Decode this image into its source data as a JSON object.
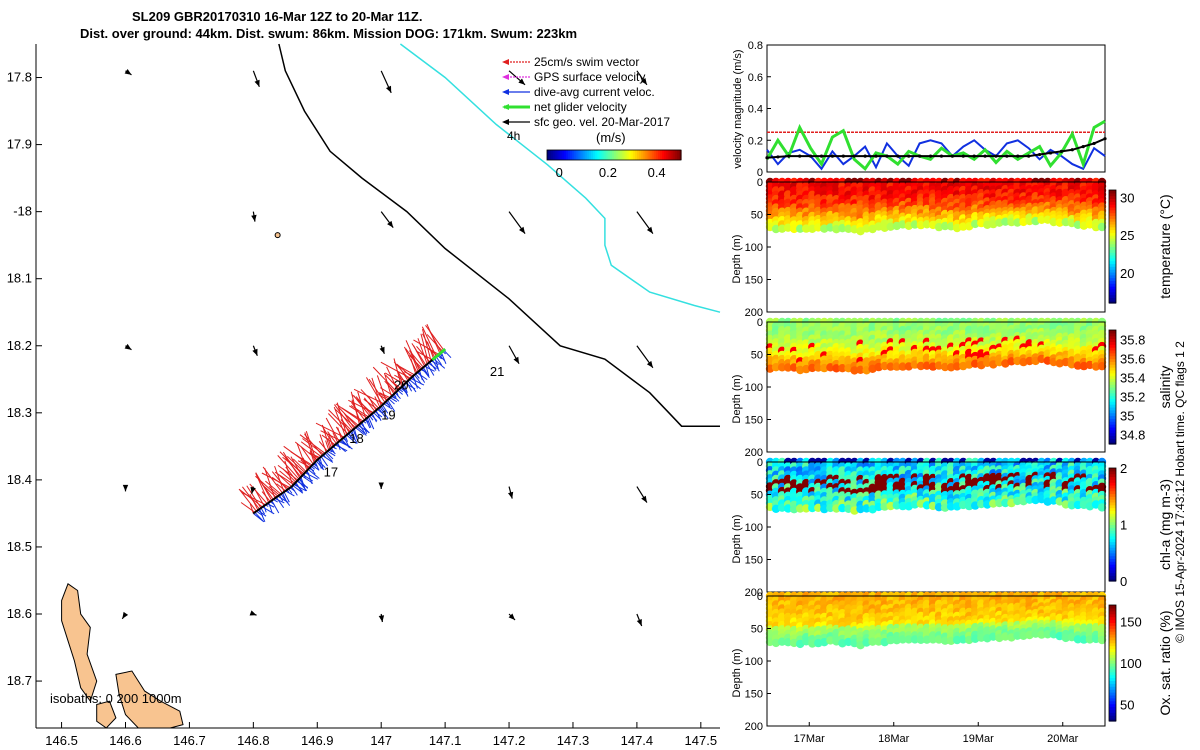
{
  "header": {
    "title_line1": "SL209 GBR20170310 16-Mar 12Z to 20-Mar 11Z.",
    "title_line2": "Dist. over ground: 44km. Dist. swum: 86km. Mission DOG: 171km. Swum: 223km"
  },
  "footer_stamp": "© IMOS 15-Apr-2024 17:43:12 Hobart time. QC flags 1  2",
  "colors": {
    "track": "#000000",
    "land": "#f8c490",
    "isobath": "#34e0e0",
    "swim_vector": "#e02020",
    "gps_velocity": "#e030e0",
    "current_veloc": "#1030e0",
    "net_velocity": "#30e030",
    "sfc_geo_vel": "#000000"
  },
  "chart_data": [
    {
      "type": "map",
      "name": "glider-track-map",
      "xlim": [
        146.46,
        147.53
      ],
      "ylim": [
        -18.77,
        -17.75
      ],
      "xticks": [
        146.5,
        146.6,
        146.7,
        146.8,
        146.9,
        147,
        147.1,
        147.2,
        147.3,
        147.4,
        147.5
      ],
      "xtick_labels": [
        "146.5",
        "146.6",
        "146.7",
        "146.8",
        "146.9",
        "147",
        "147.1",
        "147.2",
        "147.3",
        "147.4",
        "147.5"
      ],
      "yticks": [
        -17.8,
        -17.9,
        -18.0,
        -18.1,
        -18.2,
        -18.3,
        -18.4,
        -18.5,
        -18.6,
        -18.7
      ],
      "ytick_labels": [
        "17.8",
        "17.9",
        "-18",
        "18.1",
        "18.2",
        "18.3",
        "18.4",
        "18.5",
        "18.6",
        "18.7"
      ],
      "legend": {
        "entries": [
          "25cm/s swim vector",
          "GPS surface velocity",
          "dive-avg current veloc.",
          "net glider velocity",
          "sfc geo. vel. 20-Mar-2017"
        ],
        "time_label": "4h",
        "colorbar_title": "(m/s)",
        "colorbar_ticks": [
          0,
          0.2,
          0.4
        ],
        "colorbar_tick_labels": [
          "0",
          "0.2",
          "0.4"
        ],
        "colorbar_range": [
          -0.05,
          0.5
        ]
      },
      "isobaths_label": "isobaths: 0   200   1000m",
      "day_labels": [
        {
          "text": "17",
          "lon": 146.91,
          "lat": -18.395
        },
        {
          "text": "18",
          "lon": 146.95,
          "lat": -18.345
        },
        {
          "text": "19",
          "lon": 147.0,
          "lat": -18.31
        },
        {
          "text": "20",
          "lon": 147.02,
          "lat": -18.265
        },
        {
          "text": "21",
          "lon": 147.17,
          "lat": -18.245
        }
      ],
      "glider_track": [
        [
          146.8,
          -18.45
        ],
        [
          146.86,
          -18.41
        ],
        [
          146.9,
          -18.37
        ],
        [
          146.95,
          -18.33
        ],
        [
          147.0,
          -18.29
        ],
        [
          147.05,
          -18.245
        ],
        [
          147.1,
          -18.205
        ]
      ],
      "ship_track": [
        [
          146.84,
          -17.75
        ],
        [
          146.85,
          -17.79
        ],
        [
          146.88,
          -17.85
        ],
        [
          146.92,
          -17.91
        ],
        [
          146.97,
          -17.95
        ],
        [
          147.04,
          -18.0
        ],
        [
          147.1,
          -18.055
        ],
        [
          147.2,
          -18.13
        ],
        [
          147.28,
          -18.2
        ],
        [
          147.35,
          -18.22
        ],
        [
          147.42,
          -18.27
        ],
        [
          147.45,
          -18.3
        ],
        [
          147.47,
          -18.32
        ],
        [
          147.53,
          -18.32
        ]
      ],
      "isobath_line": [
        [
          147.03,
          -17.75
        ],
        [
          147.1,
          -17.8
        ],
        [
          147.18,
          -17.87
        ],
        [
          147.26,
          -17.93
        ],
        [
          147.32,
          -17.98
        ],
        [
          147.35,
          -18.01
        ],
        [
          147.35,
          -18.05
        ],
        [
          147.36,
          -18.08
        ],
        [
          147.42,
          -18.12
        ],
        [
          147.49,
          -18.14
        ],
        [
          147.53,
          -18.15
        ]
      ],
      "vectors": [
        {
          "lon": 146.6,
          "lat": -17.79,
          "u": 0.015,
          "v": -0.01
        },
        {
          "lon": 146.8,
          "lat": -17.79,
          "u": 0.015,
          "v": -0.04
        },
        {
          "lon": 147.0,
          "lat": -17.79,
          "u": 0.025,
          "v": -0.055
        },
        {
          "lon": 147.2,
          "lat": -17.79,
          "u": 0.04,
          "v": -0.035
        },
        {
          "lon": 147.4,
          "lat": -17.79,
          "u": 0.025,
          "v": -0.035
        },
        {
          "lon": 146.8,
          "lat": -18.0,
          "u": 0.004,
          "v": -0.025
        },
        {
          "lon": 147.0,
          "lat": -18.0,
          "u": 0.03,
          "v": -0.04
        },
        {
          "lon": 147.2,
          "lat": -18.0,
          "u": 0.04,
          "v": -0.055
        },
        {
          "lon": 147.4,
          "lat": -18.0,
          "u": 0.04,
          "v": -0.055
        },
        {
          "lon": 146.6,
          "lat": -18.2,
          "u": 0.015,
          "v": -0.01
        },
        {
          "lon": 146.8,
          "lat": -18.2,
          "u": 0.01,
          "v": -0.025
        },
        {
          "lon": 147.0,
          "lat": -18.2,
          "u": 0.008,
          "v": -0.02
        },
        {
          "lon": 147.2,
          "lat": -18.2,
          "u": 0.025,
          "v": -0.045
        },
        {
          "lon": 147.4,
          "lat": -18.2,
          "u": 0.04,
          "v": -0.055
        },
        {
          "lon": 146.6,
          "lat": -18.41,
          "u": 0.0,
          "v": -0.012
        },
        {
          "lon": 146.8,
          "lat": -18.41,
          "u": -0.004,
          "v": -0.018
        },
        {
          "lon": 147.0,
          "lat": -18.41,
          "u": 0.0,
          "v": -0.006
        },
        {
          "lon": 147.2,
          "lat": -18.41,
          "u": 0.008,
          "v": -0.03
        },
        {
          "lon": 147.4,
          "lat": -18.41,
          "u": 0.025,
          "v": -0.04
        },
        {
          "lon": 146.6,
          "lat": -18.6,
          "u": -0.008,
          "v": -0.012
        },
        {
          "lon": 146.8,
          "lat": -18.6,
          "u": 0.008,
          "v": -0.003
        },
        {
          "lon": 147.0,
          "lat": -18.6,
          "u": 0.003,
          "v": -0.02
        },
        {
          "lon": 147.2,
          "lat": -18.6,
          "u": 0.015,
          "v": -0.015
        },
        {
          "lon": 147.4,
          "lat": -18.6,
          "u": 0.012,
          "v": -0.03
        }
      ]
    },
    {
      "type": "line",
      "name": "velocity-magnitude",
      "ylabel": "velocity magnitude (m/s)",
      "ylim": [
        0,
        0.8
      ],
      "yticks": [
        0,
        0.2,
        0.4,
        0.6,
        0.8
      ],
      "ytick_labels": [
        "0",
        "0.2",
        "0.4",
        "0.6",
        "0.8"
      ],
      "xlim": [
        0,
        4
      ],
      "series": [
        {
          "name": "swim vector",
          "color": "#e02020",
          "values": [
            0.25,
            0.25,
            0.25,
            0.25,
            0.25,
            0.25,
            0.25,
            0.25,
            0.25,
            0.25,
            0.25,
            0.25
          ]
        },
        {
          "name": "dive-avg current veloc.",
          "color": "#1030e0",
          "values": [
            0.14,
            0.05,
            0.12,
            0.14,
            0.1,
            0.02,
            0.13,
            0.05,
            0.1,
            0.16,
            0.03,
            0.18,
            0.1,
            0.04,
            0.18,
            0.2,
            0.18,
            0.1,
            0.16,
            0.2,
            0.14,
            0.1,
            0.18,
            0.2,
            0.15,
            0.08,
            0.14,
            0.1,
            0.05,
            0.02,
            0.15,
            0.1
          ]
        },
        {
          "name": "net glider velocity",
          "color": "#30e030",
          "values": [
            0.08,
            0.2,
            0.1,
            0.28,
            0.15,
            0.05,
            0.22,
            0.26,
            0.08,
            0.02,
            0.12,
            0.1,
            0.05,
            0.13,
            0.1,
            0.08,
            0.15,
            0.1,
            0.12,
            0.08,
            0.14,
            0.06,
            0.13,
            0.08,
            0.12,
            0.16,
            0.04,
            0.12,
            0.24,
            0.05,
            0.28,
            0.32
          ]
        },
        {
          "name": "sfc geo. vel.",
          "color": "#000000",
          "values": [
            0.09,
            0.095,
            0.1,
            0.1,
            0.1,
            0.1,
            0.1,
            0.1,
            0.1,
            0.1,
            0.1,
            0.1,
            0.1,
            0.1,
            0.1,
            0.1,
            0.1,
            0.1,
            0.1,
            0.1,
            0.1,
            0.1,
            0.1,
            0.1,
            0.1,
            0.11,
            0.12,
            0.13,
            0.14,
            0.16,
            0.18,
            0.21
          ]
        }
      ]
    },
    {
      "type": "heatmap",
      "name": "temperature-section",
      "ylabel": "Depth (m)",
      "colorbar_label": "temperature (°C)",
      "ylim": [
        0,
        200
      ],
      "yticks": [
        0,
        50,
        100,
        150,
        200
      ],
      "clim": [
        16,
        31
      ],
      "colorbar_ticks": [
        20,
        25,
        30
      ],
      "colorbar_tick_labels": [
        "20",
        "25",
        "30"
      ],
      "section": {
        "max_depth": [
          70,
          72,
          70,
          74,
          68,
          66,
          70,
          65,
          62,
          58,
          65,
          68
        ],
        "surface_value": 29.2,
        "bottom_value": 24.5,
        "patch_value": 31,
        "noise": 0.8
      }
    },
    {
      "type": "heatmap",
      "name": "salinity-section",
      "ylabel": "Depth (m)",
      "colorbar_label": "salinity",
      "ylim": [
        0,
        200
      ],
      "yticks": [
        0,
        50,
        100,
        150,
        200
      ],
      "clim": [
        34.7,
        35.9
      ],
      "colorbar_ticks": [
        34.8,
        35,
        35.2,
        35.4,
        35.6,
        35.8
      ],
      "colorbar_tick_labels": [
        "34.8",
        "35",
        "35.2",
        "35.4",
        "35.6",
        "35.8"
      ],
      "section": {
        "max_depth": [
          70,
          72,
          70,
          74,
          68,
          66,
          70,
          65,
          62,
          58,
          65,
          68
        ],
        "surface_value": 35.32,
        "bottom_value": 35.62,
        "patch_value": 35.75,
        "noise": 0.05
      }
    },
    {
      "type": "heatmap",
      "name": "chlorophyll-section",
      "ylabel": "Depth (m)",
      "colorbar_label": "chl-a (mg m-3)",
      "ylim": [
        0,
        200
      ],
      "yticks": [
        0,
        50,
        100,
        150,
        200
      ],
      "clim": [
        0,
        2
      ],
      "colorbar_ticks": [
        0,
        1,
        2
      ],
      "colorbar_tick_labels": [
        "0",
        "1",
        "2"
      ],
      "section": {
        "max_depth": [
          70,
          72,
          70,
          74,
          68,
          66,
          70,
          65,
          62,
          58,
          65,
          68
        ],
        "surface_value": 0.7,
        "bottom_value": 0.9,
        "patch_value": 2.0,
        "noise": 0.25
      }
    },
    {
      "type": "heatmap",
      "name": "oxygen-section",
      "ylabel": "Depth (m)",
      "colorbar_label": "Ox. sat. ratio (%)",
      "ylim": [
        0,
        200
      ],
      "yticks": [
        0,
        50,
        100,
        150,
        200
      ],
      "clim": [
        30,
        170
      ],
      "colorbar_ticks": [
        50,
        100,
        150
      ],
      "colorbar_tick_labels": [
        "50",
        "100",
        "150"
      ],
      "section": {
        "max_depth": [
          70,
          72,
          70,
          74,
          68,
          66,
          70,
          65,
          62,
          58,
          65,
          68
        ],
        "surface_value": 128,
        "bottom_value": 108,
        "patch_value": 128,
        "noise": 5
      },
      "xticks": [
        0.5,
        1.5,
        2.5,
        3.5
      ],
      "xtick_labels": [
        "17Mar",
        "18Mar",
        "19Mar",
        "20Mar"
      ]
    }
  ]
}
